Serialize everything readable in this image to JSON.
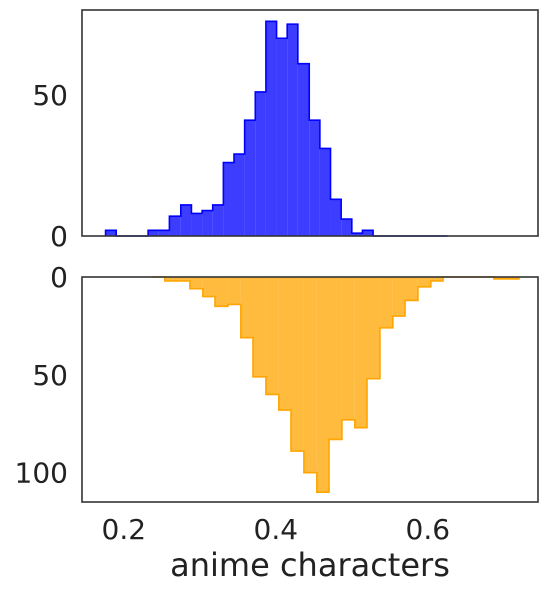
{
  "chart_data": [
    {
      "type": "histogram",
      "panel": "top",
      "orientation": "up",
      "color": "#0000ff",
      "fill_opacity": 0.76,
      "xlim": [
        0.145,
        0.745
      ],
      "ylim": [
        0,
        80
      ],
      "yticks": [
        0,
        50
      ],
      "ytick_labels": [
        "0",
        "50"
      ],
      "bin_edges": [
        0.176,
        0.19,
        0.204,
        0.218,
        0.232,
        0.246,
        0.26,
        0.275,
        0.289,
        0.303,
        0.317,
        0.331,
        0.345,
        0.359,
        0.373,
        0.387,
        0.401,
        0.415,
        0.429,
        0.444,
        0.458,
        0.472,
        0.486,
        0.5,
        0.514,
        0.528,
        0.542,
        0.556,
        0.57,
        0.584,
        0.598,
        0.612,
        0.626
      ],
      "counts": [
        2,
        0,
        0,
        0,
        2,
        2,
        7,
        11,
        8,
        9,
        11,
        26,
        29,
        41,
        51,
        76,
        70,
        75,
        61,
        41,
        31,
        13,
        6,
        1,
        2,
        0,
        0,
        0,
        0,
        0,
        0,
        0
      ]
    },
    {
      "type": "histogram",
      "panel": "bottom",
      "orientation": "down",
      "color": "#ffa500",
      "fill_opacity": 0.76,
      "xlim": [
        0.145,
        0.745
      ],
      "ylim": [
        0,
        115
      ],
      "yticks": [
        0,
        50,
        100
      ],
      "ytick_labels": [
        "0",
        "50",
        "100"
      ],
      "xticks": [
        0.2,
        0.4,
        0.6
      ],
      "xtick_labels": [
        "0.2",
        "0.4",
        "0.6"
      ],
      "xlabel": "anime characters",
      "bin_edges": [
        0.237,
        0.254,
        0.27,
        0.287,
        0.304,
        0.32,
        0.337,
        0.354,
        0.37,
        0.387,
        0.404,
        0.42,
        0.437,
        0.454,
        0.47,
        0.487,
        0.504,
        0.52,
        0.537,
        0.554,
        0.57,
        0.587,
        0.604,
        0.62,
        0.637,
        0.654,
        0.67,
        0.687,
        0.704,
        0.72
      ],
      "counts": [
        0,
        2,
        2,
        6,
        10,
        15,
        14,
        31,
        51,
        60,
        68,
        89,
        100,
        110,
        83,
        73,
        77,
        52,
        26,
        20,
        12,
        5,
        2,
        0,
        0,
        0,
        0,
        1,
        1
      ]
    }
  ]
}
